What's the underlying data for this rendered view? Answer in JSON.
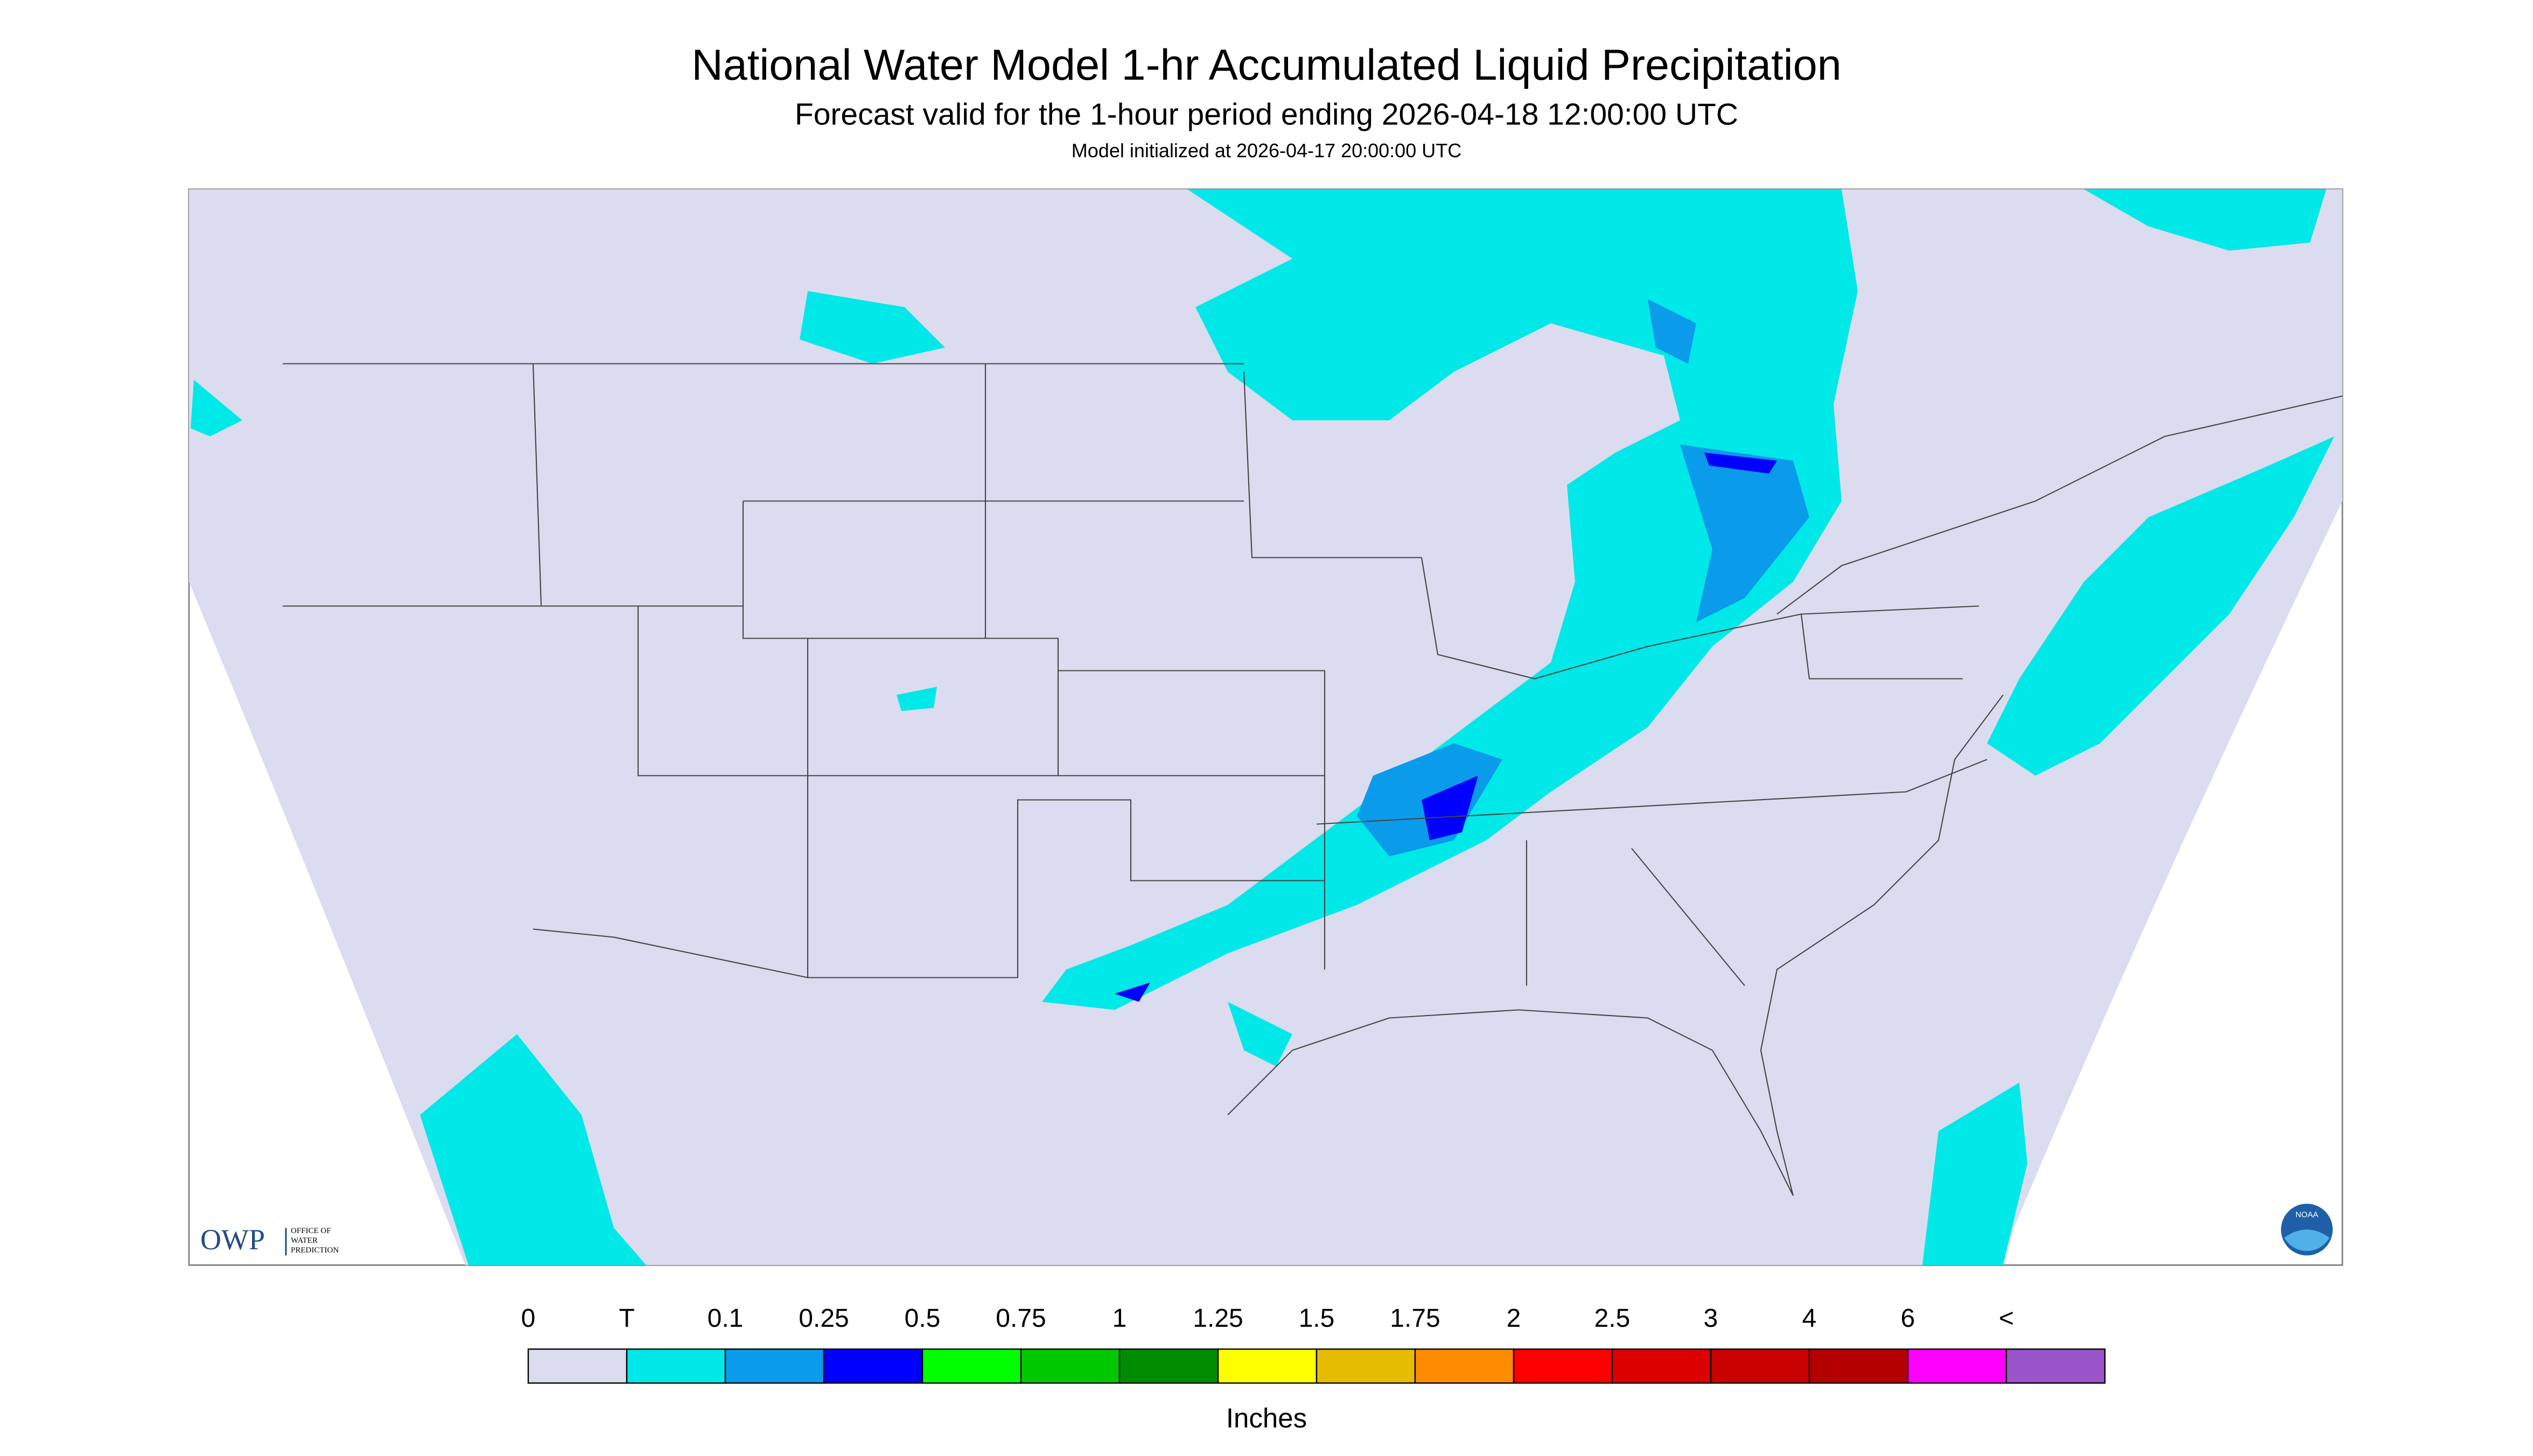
{
  "header": {
    "title": "National Water Model 1-hr Accumulated Liquid Precipitation",
    "subtitle": "Forecast valid for the 1-hour period ending 2026-04-18 12:00:00 UTC",
    "init": "Model initialized at 2026-04-17 20:00:00 UTC"
  },
  "logos": {
    "owp": "OWP",
    "owp_name": [
      "OFFICE OF",
      "WATER",
      "PREDICTION"
    ],
    "noaa": "NOAA"
  },
  "legend": {
    "labels": [
      "0",
      "T",
      "0.1",
      "0.25",
      "0.5",
      "0.75",
      "1",
      "1.25",
      "1.5",
      "1.75",
      "2",
      "2.5",
      "3",
      "4",
      "6",
      "<"
    ],
    "colors": [
      "#dcdcf0",
      "#00e8e8",
      "#0a9bea",
      "#0000ff",
      "#00ff00",
      "#00c800",
      "#008c00",
      "#ffff00",
      "#e6bc00",
      "#ff8c00",
      "#ff0000",
      "#dc0000",
      "#c80000",
      "#b40000",
      "#ff00ff",
      "#9955c9"
    ],
    "unit": "Inches"
  }
}
